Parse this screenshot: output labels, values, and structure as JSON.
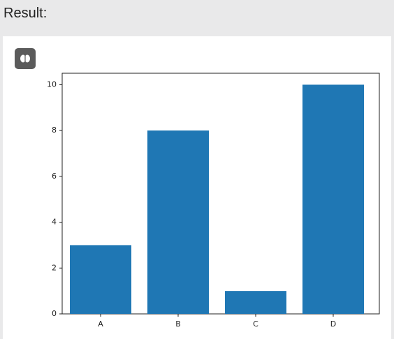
{
  "header": {
    "title": "Result:"
  },
  "chart_data": {
    "type": "bar",
    "categories": [
      "A",
      "B",
      "C",
      "D"
    ],
    "values": [
      3,
      8,
      1,
      10
    ],
    "color": "#1f77b4",
    "ylim": [
      0,
      10.5
    ],
    "yticks": [
      0,
      2,
      4,
      6,
      8,
      10
    ]
  }
}
